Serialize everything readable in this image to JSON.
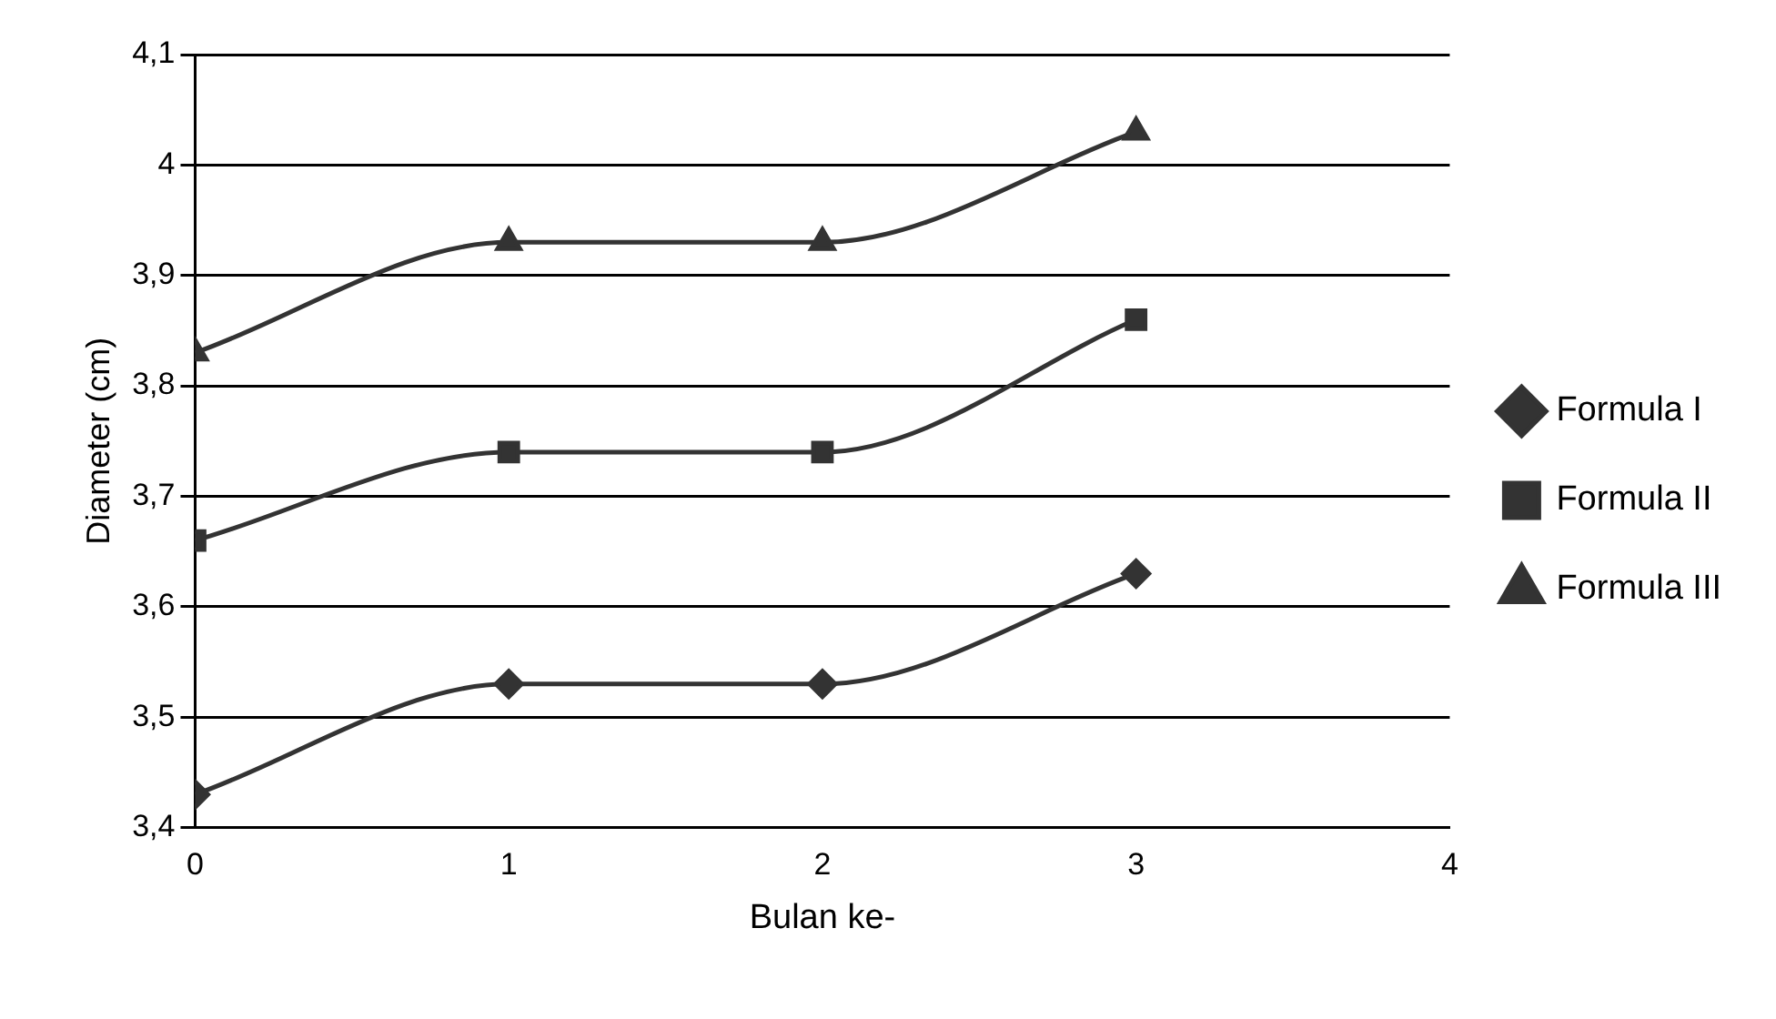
{
  "chart_data": {
    "type": "line",
    "xlabel": "Bulan ke-",
    "ylabel": "Diameter (cm)",
    "x": [
      0,
      1,
      2,
      3
    ],
    "xlim": [
      0,
      4
    ],
    "xticks": [
      0,
      1,
      2,
      3,
      4
    ],
    "ylim": [
      3.4,
      4.1
    ],
    "yticks": [
      {
        "value": 3.4,
        "label": "3,4"
      },
      {
        "value": 3.5,
        "label": "3,5"
      },
      {
        "value": 3.6,
        "label": "3,6"
      },
      {
        "value": 3.7,
        "label": "3,7"
      },
      {
        "value": 3.8,
        "label": "3,8"
      },
      {
        "value": 3.9,
        "label": "3,9"
      },
      {
        "value": 4,
        "label": "4"
      },
      {
        "value": 4.1,
        "label": "4,1"
      }
    ],
    "grid": "y",
    "legend": "right",
    "series": [
      {
        "name": "Formula I",
        "color": "#333333",
        "marker": "diamond",
        "values": [
          3.43,
          3.53,
          3.53,
          3.63
        ]
      },
      {
        "name": "Formula II",
        "color": "#333333",
        "marker": "square",
        "values": [
          3.66,
          3.74,
          3.74,
          3.86
        ]
      },
      {
        "name": "Formula III",
        "color": "#333333",
        "marker": "triangle",
        "values": [
          3.83,
          3.93,
          3.93,
          4.03
        ]
      }
    ]
  }
}
